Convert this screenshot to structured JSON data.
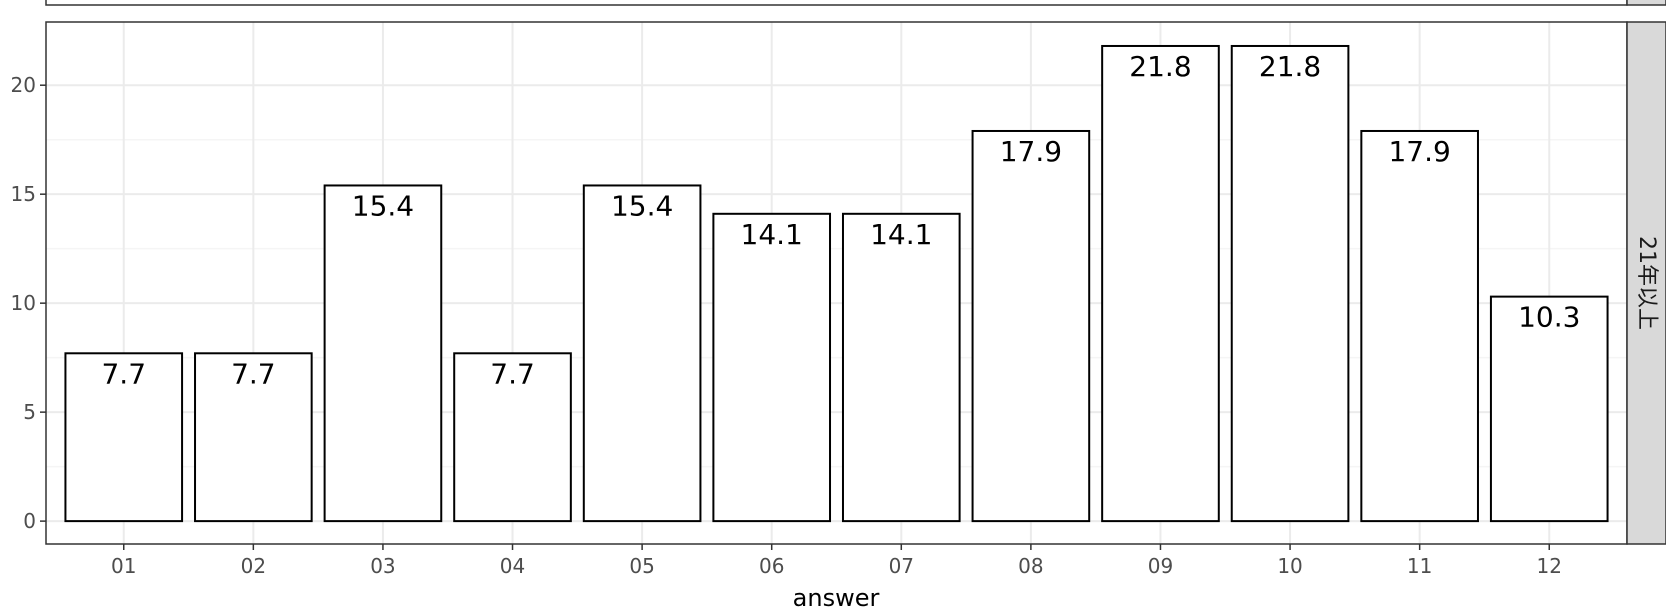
{
  "chart_data": {
    "type": "bar",
    "facet_label": "21年以上",
    "xlabel": "answer",
    "ylabel": "",
    "title": "",
    "categories": [
      "01",
      "02",
      "03",
      "04",
      "05",
      "06",
      "07",
      "08",
      "09",
      "10",
      "11",
      "12"
    ],
    "values": [
      7.7,
      7.7,
      15.4,
      7.7,
      15.4,
      14.1,
      14.1,
      17.9,
      21.8,
      21.8,
      17.9,
      10.3
    ],
    "value_labels": [
      "7.7",
      "7.7",
      "15.4",
      "7.7",
      "15.4",
      "14.1",
      "14.1",
      "17.9",
      "21.8",
      "21.8",
      "17.9",
      "10.3"
    ],
    "yticks": [
      0,
      5,
      10,
      15,
      20
    ],
    "ytick_labels": [
      "0",
      "5",
      "10",
      "15",
      "20"
    ],
    "ylim": [
      -1.05,
      22.9
    ],
    "grid": true,
    "colors": {
      "bar_fill": "#ffffff",
      "bar_stroke": "#000000",
      "grid_major": "#ebebeb",
      "grid_minor": "#f5f5f5",
      "panel_border": "#333333",
      "strip_fill": "#d9d9d9"
    }
  }
}
